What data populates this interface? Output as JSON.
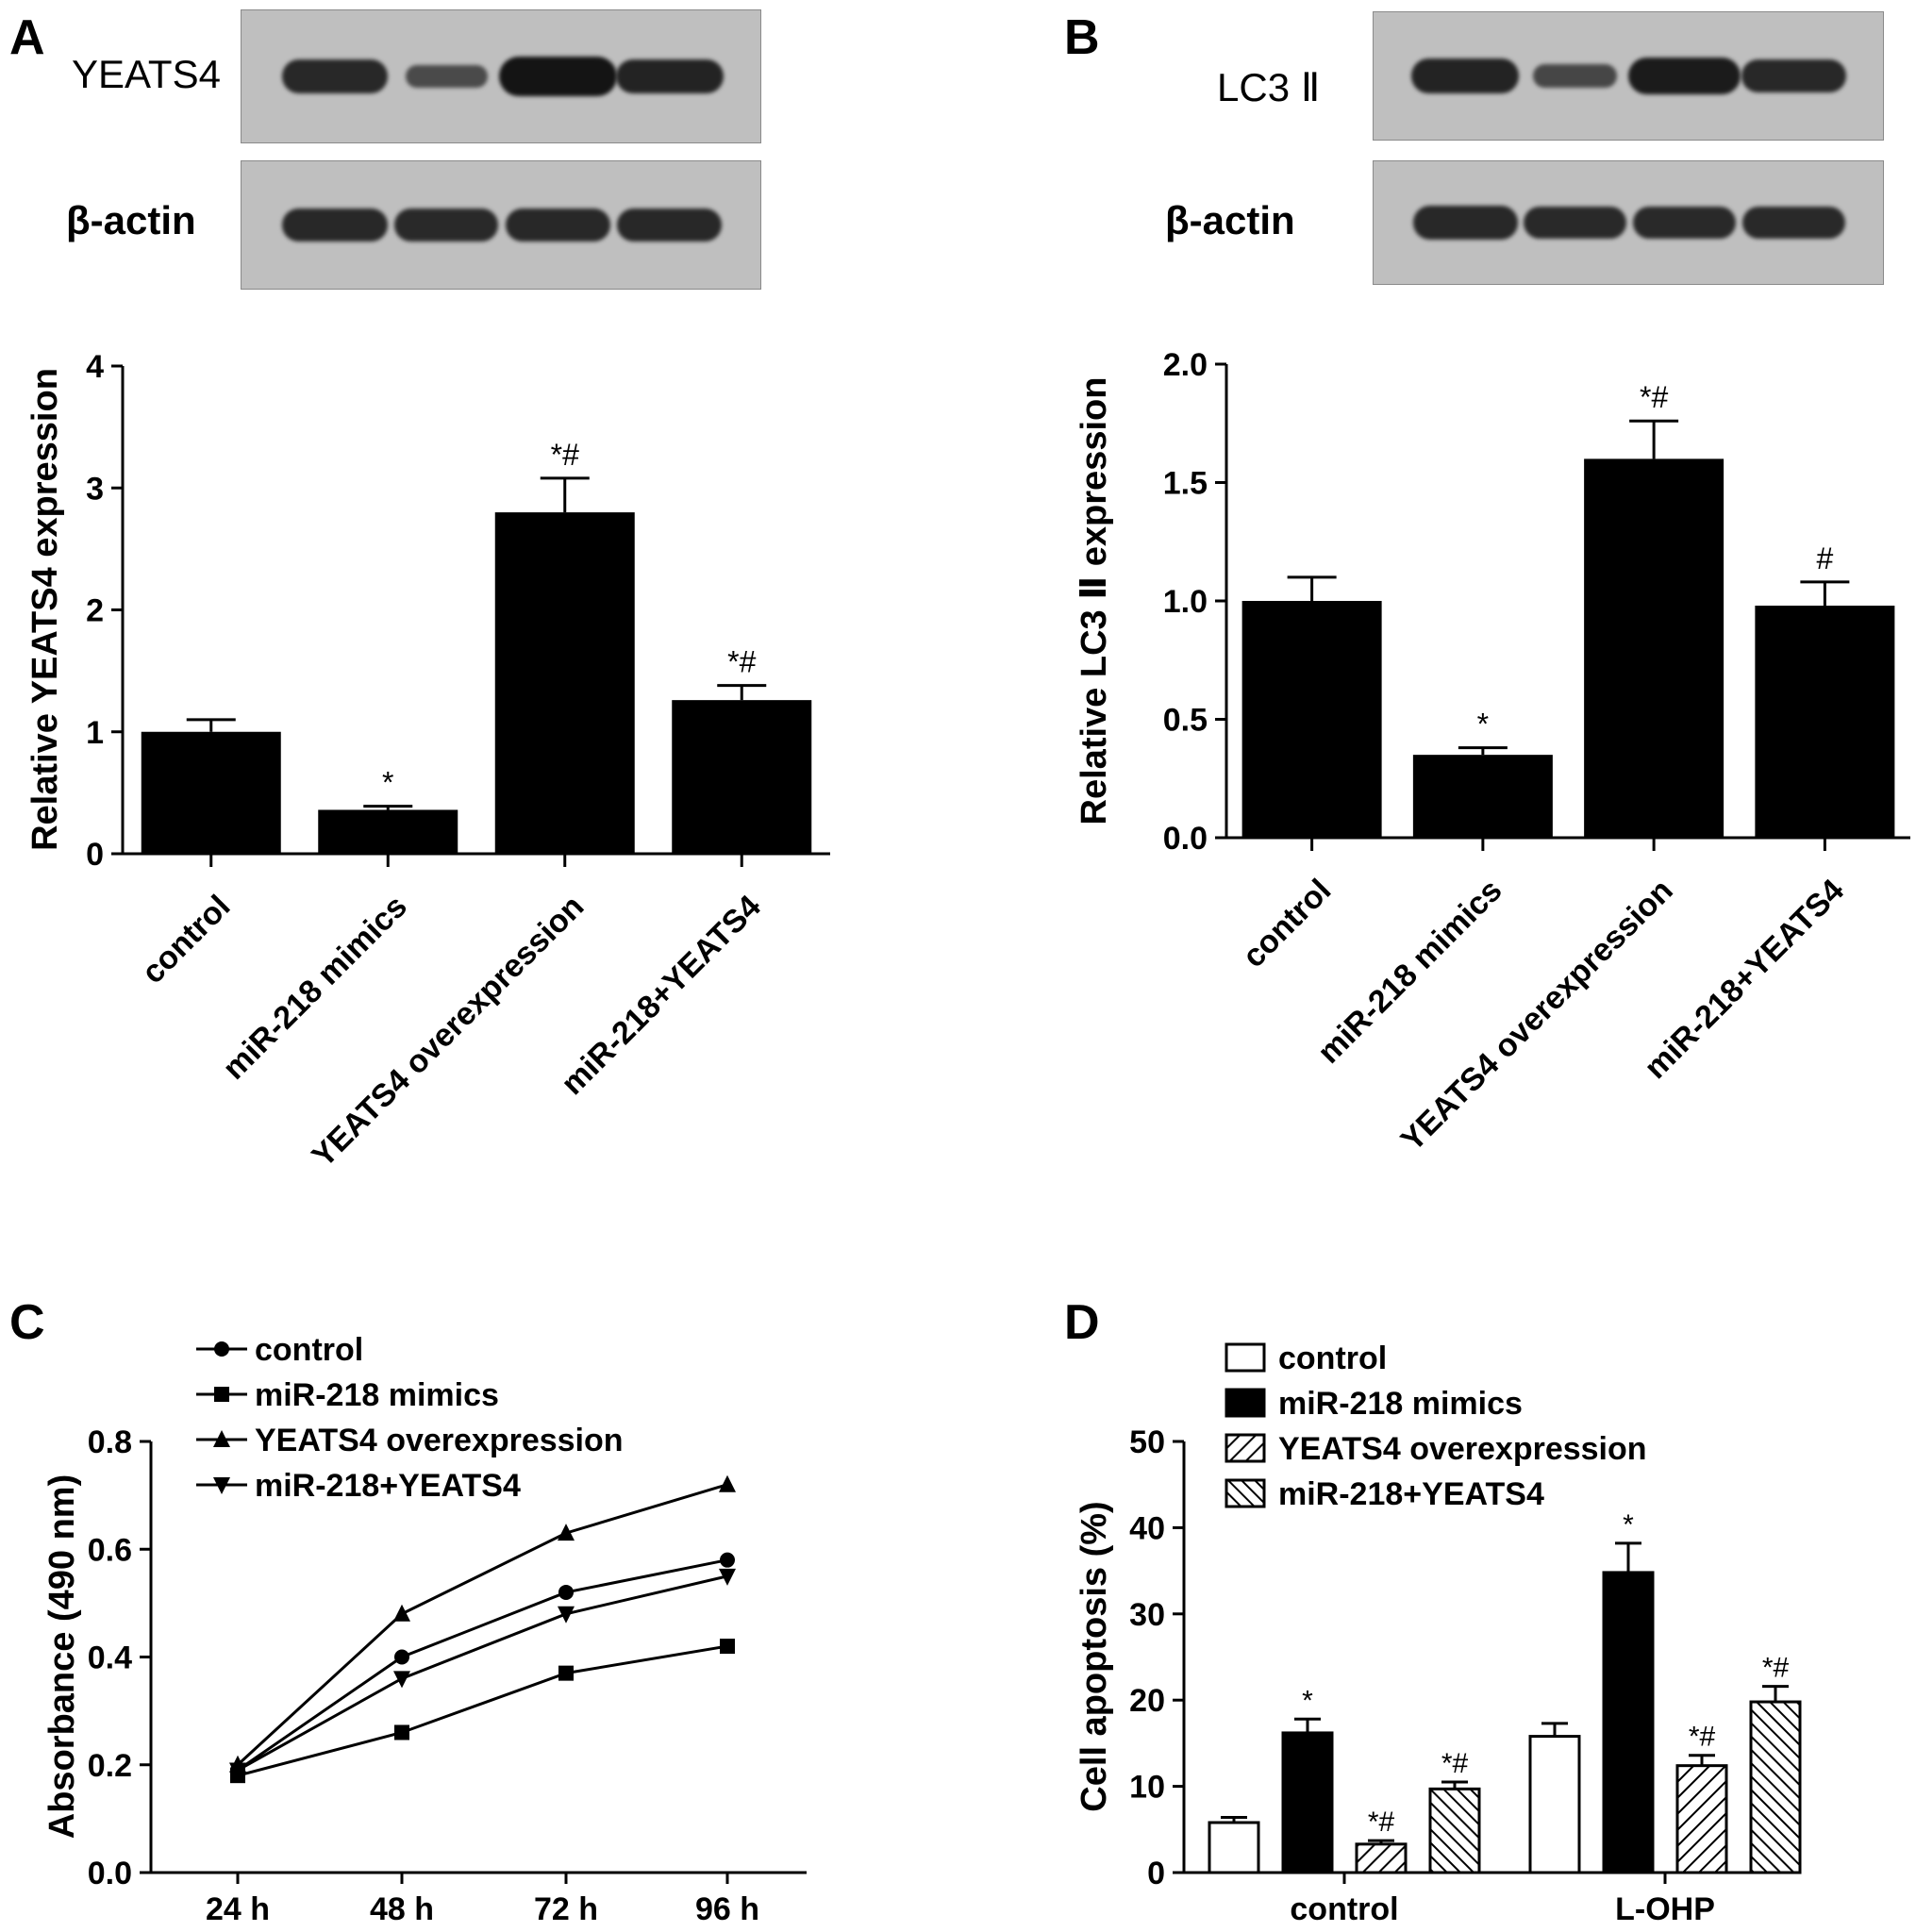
{
  "panels": {
    "a": {
      "letter": "A",
      "blot_labels": [
        "YEATS4",
        "β-actin"
      ],
      "blot_intensity": [
        [
          0.75,
          0.3,
          1.0,
          0.8
        ],
        [
          0.75,
          0.72,
          0.75,
          0.75
        ]
      ],
      "chart_data": {
        "type": "bar",
        "categories": [
          "control",
          "miR-218 mimics",
          "YEATS4 overexpression",
          "miR-218+YEATS4"
        ],
        "values": [
          1.0,
          0.36,
          2.8,
          1.26
        ],
        "errors": [
          0.1,
          0.03,
          0.28,
          0.12
        ],
        "annotations": [
          "",
          "*",
          "*#",
          "*#"
        ],
        "ylabel": "Relative YEATS4 expression",
        "ylim": [
          0,
          4
        ],
        "yticks": [
          "0",
          "1",
          "2",
          "3",
          "4"
        ],
        "bar_color": "#000000"
      }
    },
    "b": {
      "letter": "B",
      "blot_labels": [
        "LC3 Ⅱ",
        "β-actin"
      ],
      "blot_intensity": [
        [
          0.8,
          0.35,
          0.9,
          0.75
        ],
        [
          0.75,
          0.72,
          0.72,
          0.72
        ]
      ],
      "chart_data": {
        "type": "bar",
        "categories": [
          "control",
          "miR-218 mimics",
          "YEATS4 overexpression",
          "miR-218+YEATS4"
        ],
        "values": [
          1.0,
          0.35,
          1.6,
          0.98
        ],
        "errors": [
          0.1,
          0.03,
          0.16,
          0.1
        ],
        "annotations": [
          "",
          "*",
          "*#",
          "#"
        ],
        "ylabel": "Relative LC3 Ⅱ expression",
        "ylim": [
          0,
          2.0
        ],
        "yticks": [
          "0.0",
          "0.5",
          "1.0",
          "1.5",
          "2.0"
        ],
        "bar_color": "#000000"
      }
    },
    "c": {
      "letter": "C",
      "chart_data": {
        "type": "line",
        "x": [
          "24 h",
          "48 h",
          "72 h",
          "96 h"
        ],
        "series": [
          {
            "name": "control",
            "marker": "circle",
            "values": [
              0.19,
              0.4,
              0.52,
              0.58
            ]
          },
          {
            "name": "miR-218 mimics",
            "marker": "square",
            "values": [
              0.18,
              0.26,
              0.37,
              0.42
            ]
          },
          {
            "name": "YEATS4 overexpression",
            "marker": "triangle-up",
            "values": [
              0.2,
              0.48,
              0.63,
              0.72
            ]
          },
          {
            "name": "miR-218+YEATS4",
            "marker": "triangle-down",
            "values": [
              0.19,
              0.36,
              0.48,
              0.55
            ]
          }
        ],
        "ylabel": "Absorbance (490 nm)",
        "ylim": [
          0,
          0.8
        ],
        "yticks": [
          "0.0",
          "0.2",
          "0.4",
          "0.6",
          "0.8"
        ],
        "legend_position": "top-left"
      }
    },
    "d": {
      "letter": "D",
      "chart_data": {
        "type": "bar",
        "groups": [
          "control",
          "L-OHP"
        ],
        "series": [
          {
            "name": "control",
            "fill": "white",
            "values": [
              5.8,
              15.8
            ],
            "errors": [
              0.6,
              1.5
            ],
            "annotations": [
              "",
              ""
            ]
          },
          {
            "name": "miR-218 mimics",
            "fill": "black",
            "values": [
              16.2,
              34.8
            ],
            "errors": [
              1.6,
              3.4
            ],
            "annotations": [
              "*",
              "*"
            ]
          },
          {
            "name": "YEATS4 overexpression",
            "fill": "hatch-forward",
            "values": [
              3.3,
              12.4
            ],
            "errors": [
              0.4,
              1.2
            ],
            "annotations": [
              "*#",
              "*#"
            ]
          },
          {
            "name": "miR-218+YEATS4",
            "fill": "hatch-back",
            "values": [
              9.7,
              19.8
            ],
            "errors": [
              0.8,
              1.8
            ],
            "annotations": [
              "*#",
              "*#"
            ]
          }
        ],
        "ylabel": "Cell apoptosis (%)",
        "ylim": [
          0,
          50
        ],
        "yticks": [
          "0",
          "10",
          "20",
          "30",
          "40",
          "50"
        ],
        "legend_position": "top-left"
      }
    }
  }
}
